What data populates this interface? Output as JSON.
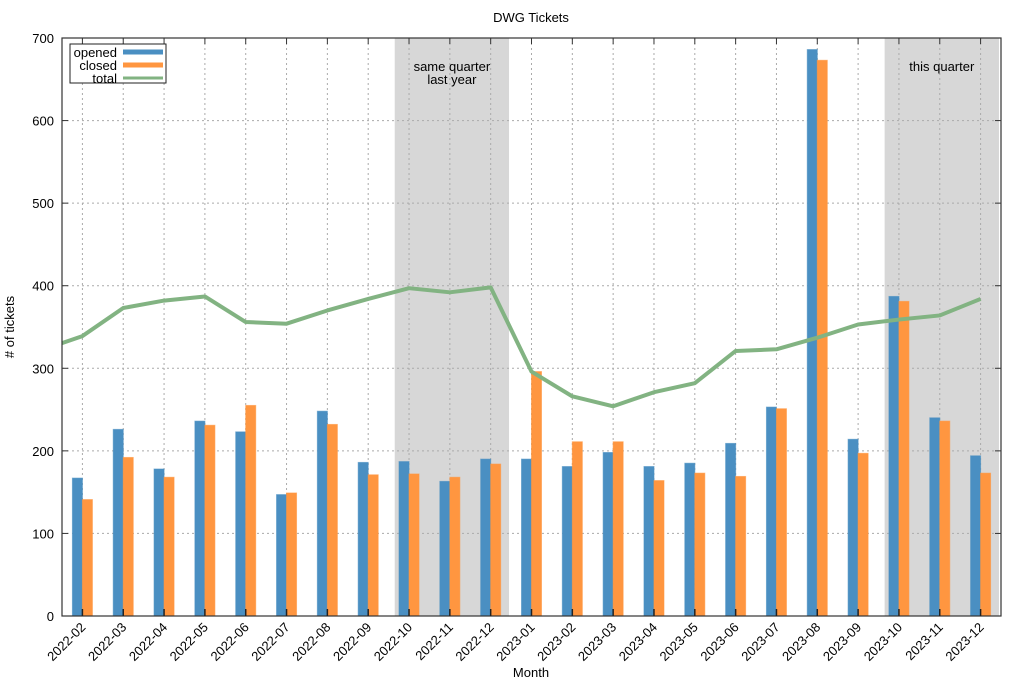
{
  "chart_data": {
    "type": "bar",
    "title": "DWG Tickets",
    "xlabel": "Month",
    "ylabel": "# of tickets",
    "ylim": [
      0,
      700
    ],
    "yticks": [
      0,
      100,
      200,
      300,
      400,
      500,
      600,
      700
    ],
    "grid": true,
    "legend_position": "top-left",
    "categories": [
      "2022-02",
      "2022-03",
      "2022-04",
      "2022-05",
      "2022-06",
      "2022-07",
      "2022-08",
      "2022-09",
      "2022-10",
      "2022-11",
      "2022-12",
      "2023-01",
      "2023-02",
      "2023-03",
      "2023-04",
      "2023-05",
      "2023-06",
      "2023-07",
      "2023-08",
      "2023-09",
      "2023-10",
      "2023-11",
      "2023-12"
    ],
    "series": [
      {
        "name": "opened",
        "type": "bar",
        "color": "#4a8fc2",
        "values": [
          167,
          226,
          178,
          236,
          223,
          147,
          248,
          186,
          187,
          163,
          190,
          190,
          181,
          198,
          181,
          185,
          209,
          253,
          686,
          214,
          387,
          240,
          194
        ]
      },
      {
        "name": "closed",
        "type": "bar",
        "color": "#ff9640",
        "values": [
          141,
          192,
          168,
          231,
          255,
          149,
          232,
          171,
          172,
          168,
          184,
          296,
          211,
          211,
          164,
          173,
          169,
          251,
          673,
          197,
          381,
          236,
          173
        ]
      },
      {
        "name": "total",
        "type": "line",
        "color": "#82b382",
        "values": [
          339,
          373,
          382,
          387,
          356,
          354,
          370,
          384,
          397,
          392,
          398,
          296,
          266,
          254,
          271,
          282,
          321,
          323,
          337,
          353,
          359,
          364,
          384
        ]
      }
    ],
    "annotations": [
      {
        "lines": [
          "same quarter",
          "last year"
        ],
        "span": [
          "2022-10",
          "2022-12"
        ]
      },
      {
        "lines": [
          "this quarter"
        ],
        "span": [
          "2023-10",
          "2023-12"
        ]
      }
    ]
  }
}
